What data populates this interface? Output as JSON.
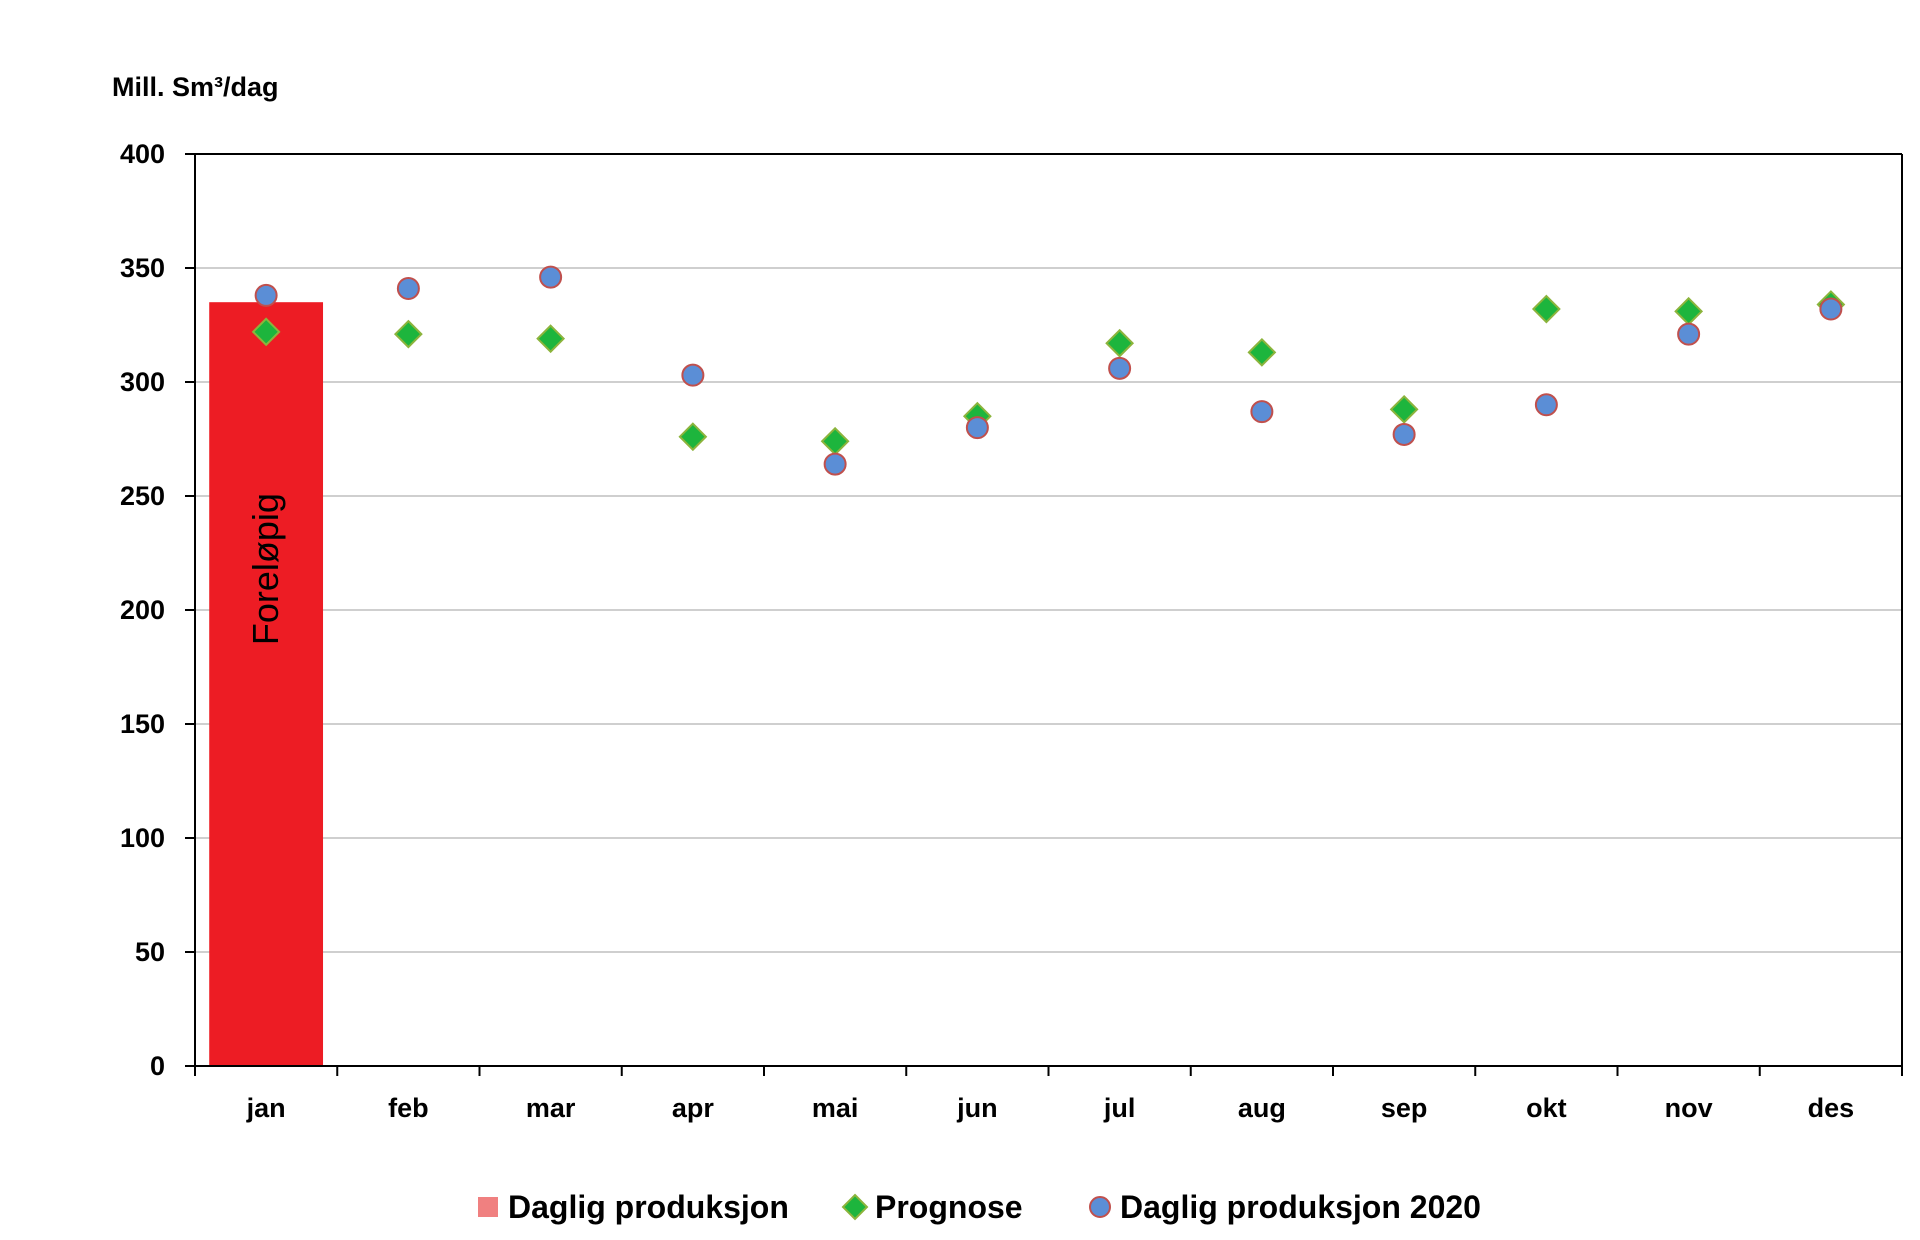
{
  "chart_data": {
    "type": "bar",
    "ylabel": "Mill. Sm³/dag",
    "ylim": [
      0,
      400
    ],
    "yticks": [
      0,
      50,
      100,
      150,
      200,
      250,
      300,
      350,
      400
    ],
    "categories": [
      "jan",
      "feb",
      "mar",
      "apr",
      "mai",
      "jun",
      "jul",
      "aug",
      "sep",
      "okt",
      "nov",
      "des"
    ],
    "grid": true,
    "legend_position": "bottom",
    "series": [
      {
        "name": "Daglig produksjon",
        "kind": "bar",
        "color": "#ED1C24",
        "legend_color": "#F08080",
        "values": [
          335,
          null,
          null,
          null,
          null,
          null,
          null,
          null,
          null,
          null,
          null,
          null
        ],
        "bar_label": "Foreløpig"
      },
      {
        "name": "Prognose",
        "kind": "scatter",
        "marker": "diamond",
        "color": "#1DB53D",
        "edge_color": "#8CB43C",
        "values": [
          322,
          321,
          319,
          276,
          274,
          285,
          317,
          313,
          288,
          332,
          331,
          334
        ]
      },
      {
        "name": "Daglig produksjon 2020",
        "kind": "scatter",
        "marker": "circle",
        "color": "#5B8ED6",
        "edge_color": "#C0504D",
        "values": [
          338,
          341,
          346,
          303,
          264,
          280,
          306,
          287,
          277,
          290,
          321,
          332
        ]
      }
    ]
  }
}
